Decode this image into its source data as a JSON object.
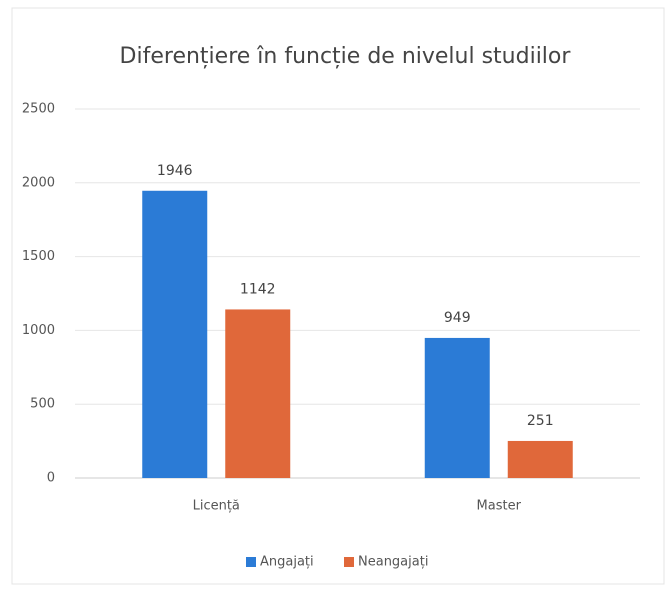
{
  "chart_data": {
    "type": "bar",
    "title": "Diferențiere în funcție de nivelul studiilor",
    "categories": [
      "Licență",
      "Master"
    ],
    "series": [
      {
        "name": "Angajați",
        "color": "#2b7bd6",
        "values": [
          1946,
          949
        ]
      },
      {
        "name": "Neangajați",
        "color": "#e0683a",
        "values": [
          1142,
          251
        ]
      }
    ],
    "ylim": [
      0,
      2500
    ],
    "yticks": [
      0,
      500,
      1000,
      1500,
      2000,
      2500
    ],
    "grid": true,
    "legend": "bottom"
  }
}
